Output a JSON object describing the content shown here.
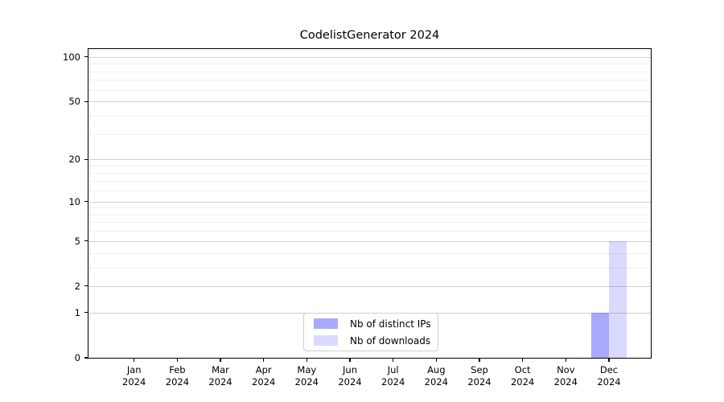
{
  "title": "CodelistGenerator 2024",
  "legend": {
    "items": [
      {
        "label": "Nb of distinct IPs",
        "color": "rgba(10,10,245,0.35)"
      },
      {
        "label": "Nb of downloads",
        "color": "rgba(10,10,245,0.15)"
      }
    ]
  },
  "chart_data": {
    "type": "bar",
    "title": "CodelistGenerator 2024",
    "categories": [
      "Jan 2024",
      "Feb 2024",
      "Mar 2024",
      "Apr 2024",
      "May 2024",
      "Jun 2024",
      "Jul 2024",
      "Aug 2024",
      "Sep 2024",
      "Oct 2024",
      "Nov 2024",
      "Dec 2024"
    ],
    "series": [
      {
        "name": "Nb of distinct IPs",
        "color": "rgba(10,10,245,0.35)",
        "values": [
          0,
          0,
          0,
          0,
          0,
          0,
          0,
          0,
          0,
          0,
          0,
          1
        ]
      },
      {
        "name": "Nb of downloads",
        "color": "rgba(10,10,245,0.15)",
        "values": [
          0,
          0,
          0,
          0,
          0,
          0,
          0,
          0,
          0,
          0,
          0,
          5
        ]
      }
    ],
    "xlabel": "",
    "ylabel": "",
    "y_scale": "log1p",
    "y_ticks": [
      0,
      1,
      2,
      5,
      10,
      20,
      50,
      100
    ],
    "y_minor_gridlines": [
      3,
      4,
      6,
      7,
      8,
      9,
      12,
      14,
      16,
      18,
      30,
      40,
      60,
      70,
      80,
      90
    ],
    "ylim": [
      0,
      113
    ],
    "grid": "horizontal-only",
    "grid_major_color": "#d2d2d2",
    "grid_minor_color": "#efefef",
    "legend_position": "inside-bottom-center"
  }
}
